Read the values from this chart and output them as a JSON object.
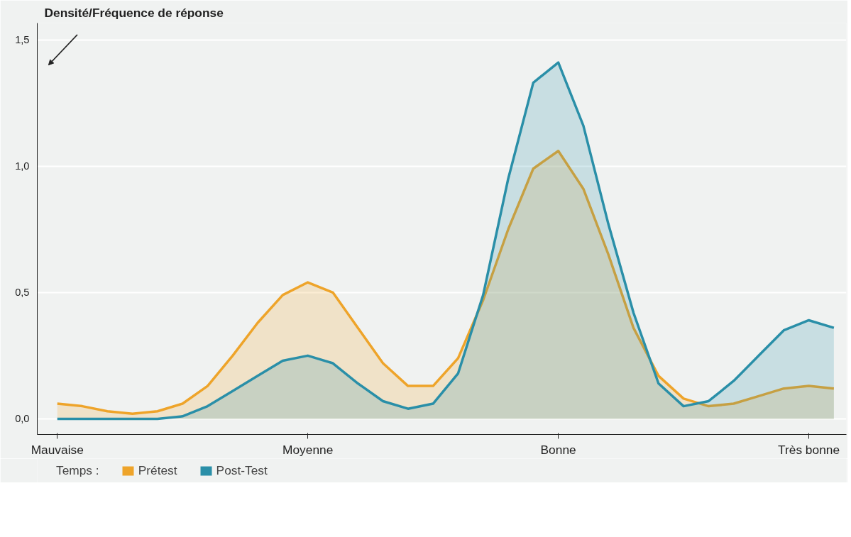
{
  "chart_data": {
    "type": "area",
    "ylabel": "Densité/Fréquence de réponse",
    "legend_title": "Temps :",
    "categories": [
      "Mauvaise",
      null,
      null,
      null,
      null,
      null,
      null,
      null,
      null,
      null,
      "Moyenne",
      null,
      null,
      null,
      null,
      null,
      null,
      null,
      null,
      null,
      "Bonne",
      null,
      null,
      null,
      null,
      null,
      null,
      null,
      null,
      null,
      "Très bonne",
      null
    ],
    "ylim": [
      -0.062,
      1.566
    ],
    "yticks": [
      {
        "value": 0,
        "label": "0,0"
      },
      {
        "value": 0.5,
        "label": "0,5"
      },
      {
        "value": 1,
        "label": "1,0"
      },
      {
        "value": 1.5,
        "label": "1,5"
      }
    ],
    "grid": "y",
    "legend": "bottom left",
    "series": [
      {
        "name": "Prétest",
        "color": "#eea42a",
        "values": [
          0.06,
          0.05,
          0.03,
          0.02,
          0.03,
          0.06,
          0.13,
          0.25,
          0.38,
          0.49,
          0.54,
          0.5,
          0.36,
          0.22,
          0.13,
          0.13,
          0.24,
          0.47,
          0.75,
          0.99,
          1.06,
          0.91,
          0.65,
          0.36,
          0.17,
          0.08,
          0.05,
          0.06,
          0.09,
          0.12,
          0.13,
          0.12
        ]
      },
      {
        "name": "Post-Test",
        "color": "#2a8fa8",
        "values": [
          0,
          0,
          0,
          0,
          0,
          0.01,
          0.05,
          0.11,
          0.17,
          0.23,
          0.25,
          0.22,
          0.14,
          0.07,
          0.04,
          0.06,
          0.18,
          0.49,
          0.95,
          1.33,
          1.41,
          1.16,
          0.77,
          0.42,
          0.14,
          0.05,
          0.07,
          0.15,
          0.25,
          0.35,
          0.39,
          0.36
        ]
      }
    ]
  }
}
